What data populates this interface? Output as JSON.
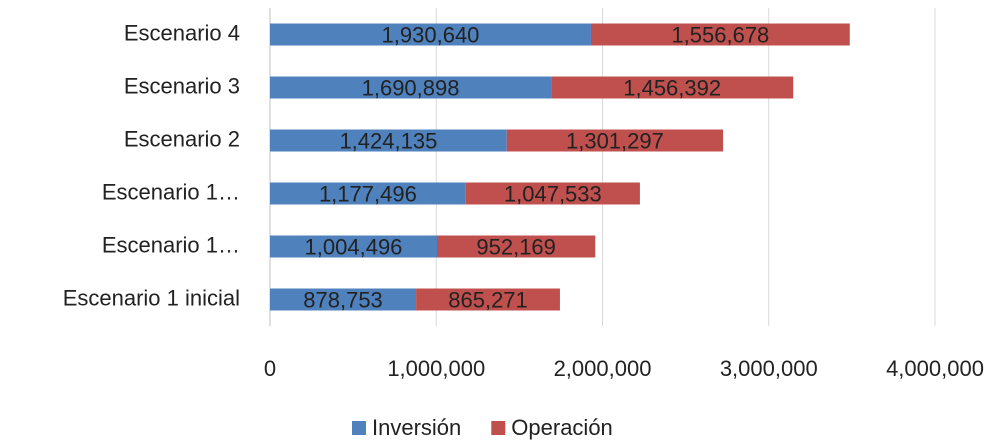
{
  "chart_data": {
    "type": "stacked_barh",
    "categories": [
      "Escenario 1 inicial",
      "Escenario 1…",
      "Escenario 1…",
      "Escenario 2",
      "Escenario 3",
      "Escenario 4"
    ],
    "series": [
      {
        "name": "Inversión",
        "color": "#4f81bd",
        "values": [
          878753,
          1004496,
          1177496,
          1424135,
          1690898,
          1930640
        ],
        "value_labels": [
          "878,753",
          "1,004,496",
          "1,177,496",
          "1,424,135",
          "1,690,898",
          "1,930,640"
        ]
      },
      {
        "name": "Operación",
        "color": "#c0504d",
        "values": [
          865271,
          952169,
          1047533,
          1301297,
          1456392,
          1556678
        ],
        "value_labels": [
          "865,271",
          "952,169",
          "1,047,533",
          "1,301,297",
          "1,456,392",
          "1,556,678"
        ]
      }
    ],
    "xlim": [
      0,
      4000000
    ],
    "xticks": [
      0,
      {
        "value": 1000000,
        "label": "1,000,000"
      },
      {
        "value": 2000000,
        "label": "2,000,000"
      },
      {
        "value": 3000000,
        "label": "3,000,000"
      },
      {
        "value": 4000000,
        "label": "4,000,000"
      }
    ],
    "grid": true,
    "legend": "bottom"
  }
}
